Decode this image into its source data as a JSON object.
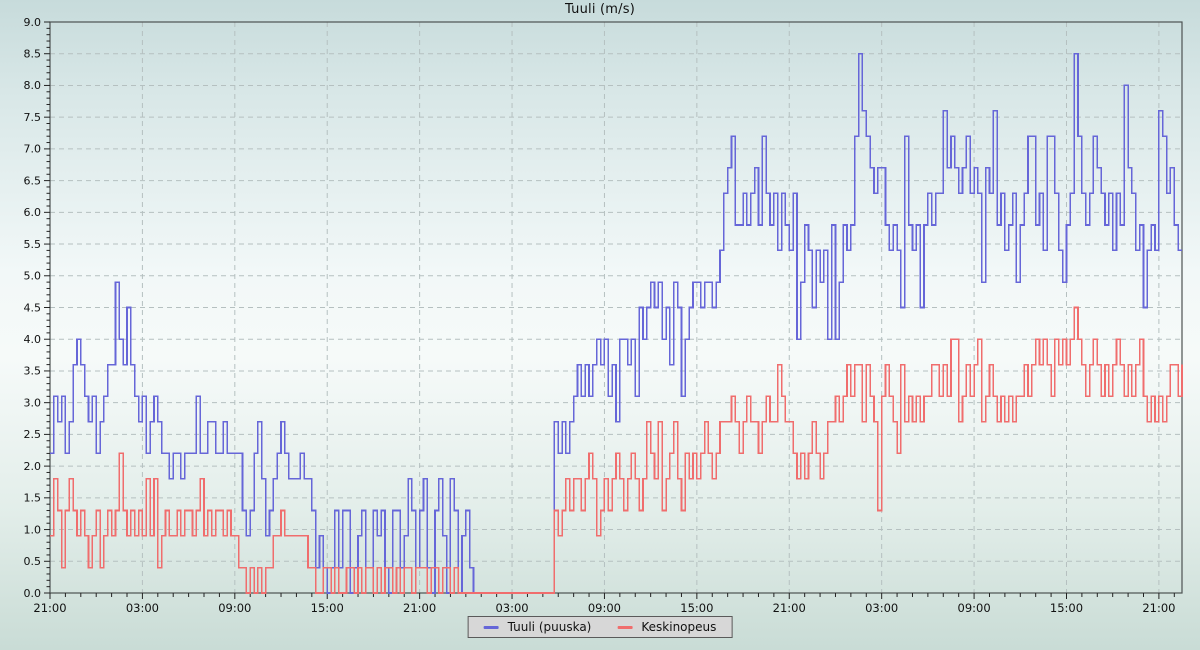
{
  "chart_data": {
    "type": "line",
    "title": "Tuuli (m/s)",
    "grid": "dashed",
    "legend_position": "bottom-center",
    "x_range": [
      0,
      73.5
    ],
    "y_range": [
      0,
      9
    ],
    "y_tick_step": 0.5,
    "y_minor_step": 0.1,
    "x_major_tick_hours": 6,
    "x_minor_tick_hours": 1,
    "sample_interval_hours": 0.25,
    "x_tick_labels": [
      "21:00",
      "03:00",
      "09:00",
      "15:00",
      "21:00",
      "03:00",
      "09:00",
      "15:00",
      "21:00",
      "03:00",
      "09:00",
      "15:00",
      "21:00"
    ],
    "y_tick_labels": [
      "0.0",
      "0.5",
      "1.0",
      "1.5",
      "2.0",
      "2.5",
      "3.0",
      "3.5",
      "4.0",
      "4.5",
      "5.0",
      "5.5",
      "6.0",
      "6.5",
      "7.0",
      "7.5",
      "8.0",
      "8.5",
      "9.0"
    ],
    "series": [
      {
        "name": "Tuuli (puuska)",
        "color": "#6666d8",
        "values": [
          2.2,
          3.1,
          2.7,
          3.1,
          2.2,
          2.7,
          3.6,
          4.0,
          3.6,
          3.1,
          2.7,
          3.1,
          2.2,
          2.7,
          3.1,
          3.6,
          3.6,
          4.9,
          4.0,
          3.6,
          4.5,
          3.6,
          3.1,
          2.7,
          3.1,
          2.2,
          2.7,
          3.1,
          2.7,
          2.2,
          2.2,
          1.8,
          2.2,
          2.2,
          1.8,
          2.2,
          2.2,
          2.2,
          3.1,
          2.2,
          2.2,
          2.7,
          2.7,
          2.2,
          2.2,
          2.7,
          2.2,
          2.2,
          2.2,
          2.2,
          1.3,
          0.9,
          1.3,
          2.2,
          2.7,
          1.8,
          0.9,
          1.3,
          1.8,
          2.2,
          2.7,
          2.2,
          1.8,
          1.8,
          1.8,
          2.2,
          1.8,
          1.8,
          1.3,
          0.4,
          0.9,
          0.4,
          0,
          0.4,
          1.3,
          0.4,
          1.3,
          1.3,
          0,
          0.4,
          0.9,
          1.3,
          0.4,
          0.4,
          1.3,
          0.9,
          1.3,
          0.4,
          0,
          1.3,
          1.3,
          0.4,
          0.9,
          1.8,
          1.3,
          0.4,
          1.3,
          1.8,
          0.4,
          0,
          1.3,
          1.8,
          0.9,
          0,
          1.8,
          1.3,
          0,
          0.9,
          1.3,
          0.4,
          0,
          0,
          0,
          0,
          0,
          0,
          0,
          0,
          0,
          0,
          0,
          0,
          0,
          0,
          0,
          0,
          0,
          0,
          0,
          0,
          0,
          2.7,
          2.2,
          2.7,
          2.2,
          2.7,
          3.1,
          3.6,
          3.1,
          3.6,
          3.1,
          3.6,
          4.0,
          3.6,
          4.0,
          3.1,
          3.6,
          2.7,
          4.0,
          4.0,
          3.6,
          4.0,
          3.1,
          4.5,
          4.0,
          4.5,
          4.9,
          4.5,
          4.9,
          4.0,
          4.5,
          3.6,
          4.9,
          4.5,
          3.1,
          4.0,
          4.5,
          4.9,
          4.9,
          4.5,
          4.9,
          4.9,
          4.5,
          4.9,
          5.4,
          6.3,
          6.7,
          7.2,
          5.8,
          5.8,
          6.3,
          5.8,
          6.3,
          6.7,
          5.8,
          7.2,
          6.3,
          5.8,
          6.3,
          5.4,
          6.3,
          5.8,
          5.4,
          6.3,
          4.0,
          4.9,
          5.8,
          5.4,
          4.5,
          5.4,
          4.9,
          5.4,
          4.0,
          5.8,
          4.0,
          4.9,
          5.8,
          5.4,
          5.8,
          7.2,
          8.5,
          7.6,
          7.2,
          6.7,
          6.3,
          6.7,
          6.7,
          5.8,
          5.4,
          5.8,
          5.4,
          4.5,
          7.2,
          5.8,
          5.4,
          5.8,
          4.5,
          5.8,
          6.3,
          5.8,
          6.3,
          6.3,
          7.6,
          6.7,
          7.2,
          6.7,
          6.3,
          6.7,
          7.2,
          6.3,
          6.7,
          6.3,
          4.9,
          6.7,
          6.3,
          7.6,
          5.8,
          6.3,
          5.4,
          5.8,
          6.3,
          4.9,
          5.8,
          6.3,
          7.2,
          7.2,
          5.8,
          6.3,
          5.4,
          7.2,
          7.2,
          6.3,
          5.4,
          4.9,
          5.8,
          6.3,
          8.5,
          7.2,
          6.3,
          5.8,
          6.3,
          7.2,
          6.7,
          6.3,
          5.8,
          6.3,
          5.4,
          6.3,
          5.8,
          8.0,
          6.7,
          6.3,
          5.4,
          5.8,
          4.5,
          5.4,
          5.8,
          5.4,
          7.6,
          7.2,
          6.3,
          6.7,
          5.8,
          5.4,
          5.4
        ]
      },
      {
        "name": "Keskinopeus",
        "color": "#f06d6d",
        "values": [
          0.9,
          1.8,
          1.3,
          0.4,
          1.3,
          1.8,
          1.3,
          0.9,
          1.3,
          0.9,
          0.4,
          0.9,
          1.3,
          0.4,
          0.9,
          1.3,
          0.9,
          1.3,
          2.2,
          1.3,
          0.9,
          1.3,
          0.9,
          1.3,
          0.9,
          1.8,
          0.9,
          1.8,
          0.4,
          0.9,
          1.3,
          0.9,
          0.9,
          1.3,
          0.9,
          1.3,
          1.3,
          0.9,
          1.3,
          1.8,
          0.9,
          1.3,
          0.9,
          1.3,
          1.3,
          0.9,
          1.3,
          0.9,
          0.9,
          0.4,
          0.4,
          0,
          0.4,
          0,
          0.4,
          0,
          0.4,
          0.4,
          0.9,
          0.9,
          1.3,
          0.9,
          0.9,
          0.9,
          0.9,
          0.9,
          0.9,
          0.4,
          0.4,
          0,
          0,
          0.4,
          0.4,
          0,
          0.4,
          0,
          0,
          0.4,
          0.4,
          0,
          0.4,
          0,
          0.4,
          0.4,
          0,
          0.4,
          0,
          0.4,
          0.4,
          0,
          0.4,
          0,
          0.4,
          0.4,
          0,
          0.4,
          0.4,
          0.4,
          0,
          0.4,
          0.4,
          0,
          0.4,
          0.4,
          0,
          0.4,
          0,
          0,
          0,
          0,
          0,
          0,
          0,
          0,
          0,
          0,
          0,
          0,
          0,
          0,
          0,
          0,
          0,
          0,
          0,
          0,
          0,
          0,
          0,
          0,
          0,
          1.3,
          0.9,
          1.3,
          1.8,
          1.3,
          1.8,
          1.8,
          1.3,
          1.8,
          2.2,
          1.8,
          0.9,
          1.3,
          1.8,
          1.3,
          1.8,
          2.2,
          1.8,
          1.3,
          1.8,
          2.2,
          1.8,
          1.3,
          1.8,
          2.7,
          2.2,
          1.8,
          2.7,
          1.3,
          1.8,
          2.2,
          2.7,
          1.8,
          1.3,
          2.2,
          1.8,
          2.2,
          1.8,
          2.2,
          2.7,
          2.2,
          1.8,
          2.2,
          2.7,
          2.7,
          2.7,
          3.1,
          2.7,
          2.2,
          2.7,
          3.1,
          2.7,
          2.7,
          2.2,
          2.7,
          3.1,
          2.7,
          2.7,
          3.6,
          3.1,
          2.7,
          2.7,
          2.2,
          1.8,
          2.2,
          1.8,
          2.2,
          2.7,
          2.2,
          1.8,
          2.2,
          2.7,
          2.7,
          3.1,
          2.7,
          3.1,
          3.6,
          3.1,
          3.6,
          3.6,
          2.7,
          3.6,
          3.1,
          2.7,
          1.3,
          3.1,
          3.6,
          3.1,
          2.7,
          2.2,
          3.6,
          2.7,
          3.1,
          2.7,
          3.1,
          2.7,
          3.1,
          3.1,
          3.6,
          3.6,
          3.1,
          3.6,
          3.1,
          4.0,
          4.0,
          2.7,
          3.1,
          3.6,
          3.1,
          3.6,
          4.0,
          2.7,
          3.1,
          3.6,
          3.1,
          2.7,
          3.1,
          2.7,
          3.1,
          2.7,
          3.1,
          3.1,
          3.6,
          3.1,
          3.6,
          4.0,
          3.6,
          4.0,
          3.6,
          3.1,
          4.0,
          3.6,
          4.0,
          3.6,
          4.0,
          4.5,
          4.0,
          3.6,
          3.1,
          3.6,
          4.0,
          3.6,
          3.1,
          3.6,
          3.1,
          3.6,
          4.0,
          3.6,
          3.1,
          3.6,
          3.1,
          3.6,
          4.0,
          3.1,
          2.7,
          3.1,
          2.7,
          3.1,
          2.7,
          3.1,
          3.6,
          3.6,
          3.1,
          3.6
        ]
      }
    ]
  },
  "colors": {
    "grid": "#b5c0c0",
    "axis": "#4d5252",
    "tick": "#222222",
    "text": "#111111",
    "legend_bg": "#d7d7d7",
    "legend_border": "#5a5a5a"
  }
}
